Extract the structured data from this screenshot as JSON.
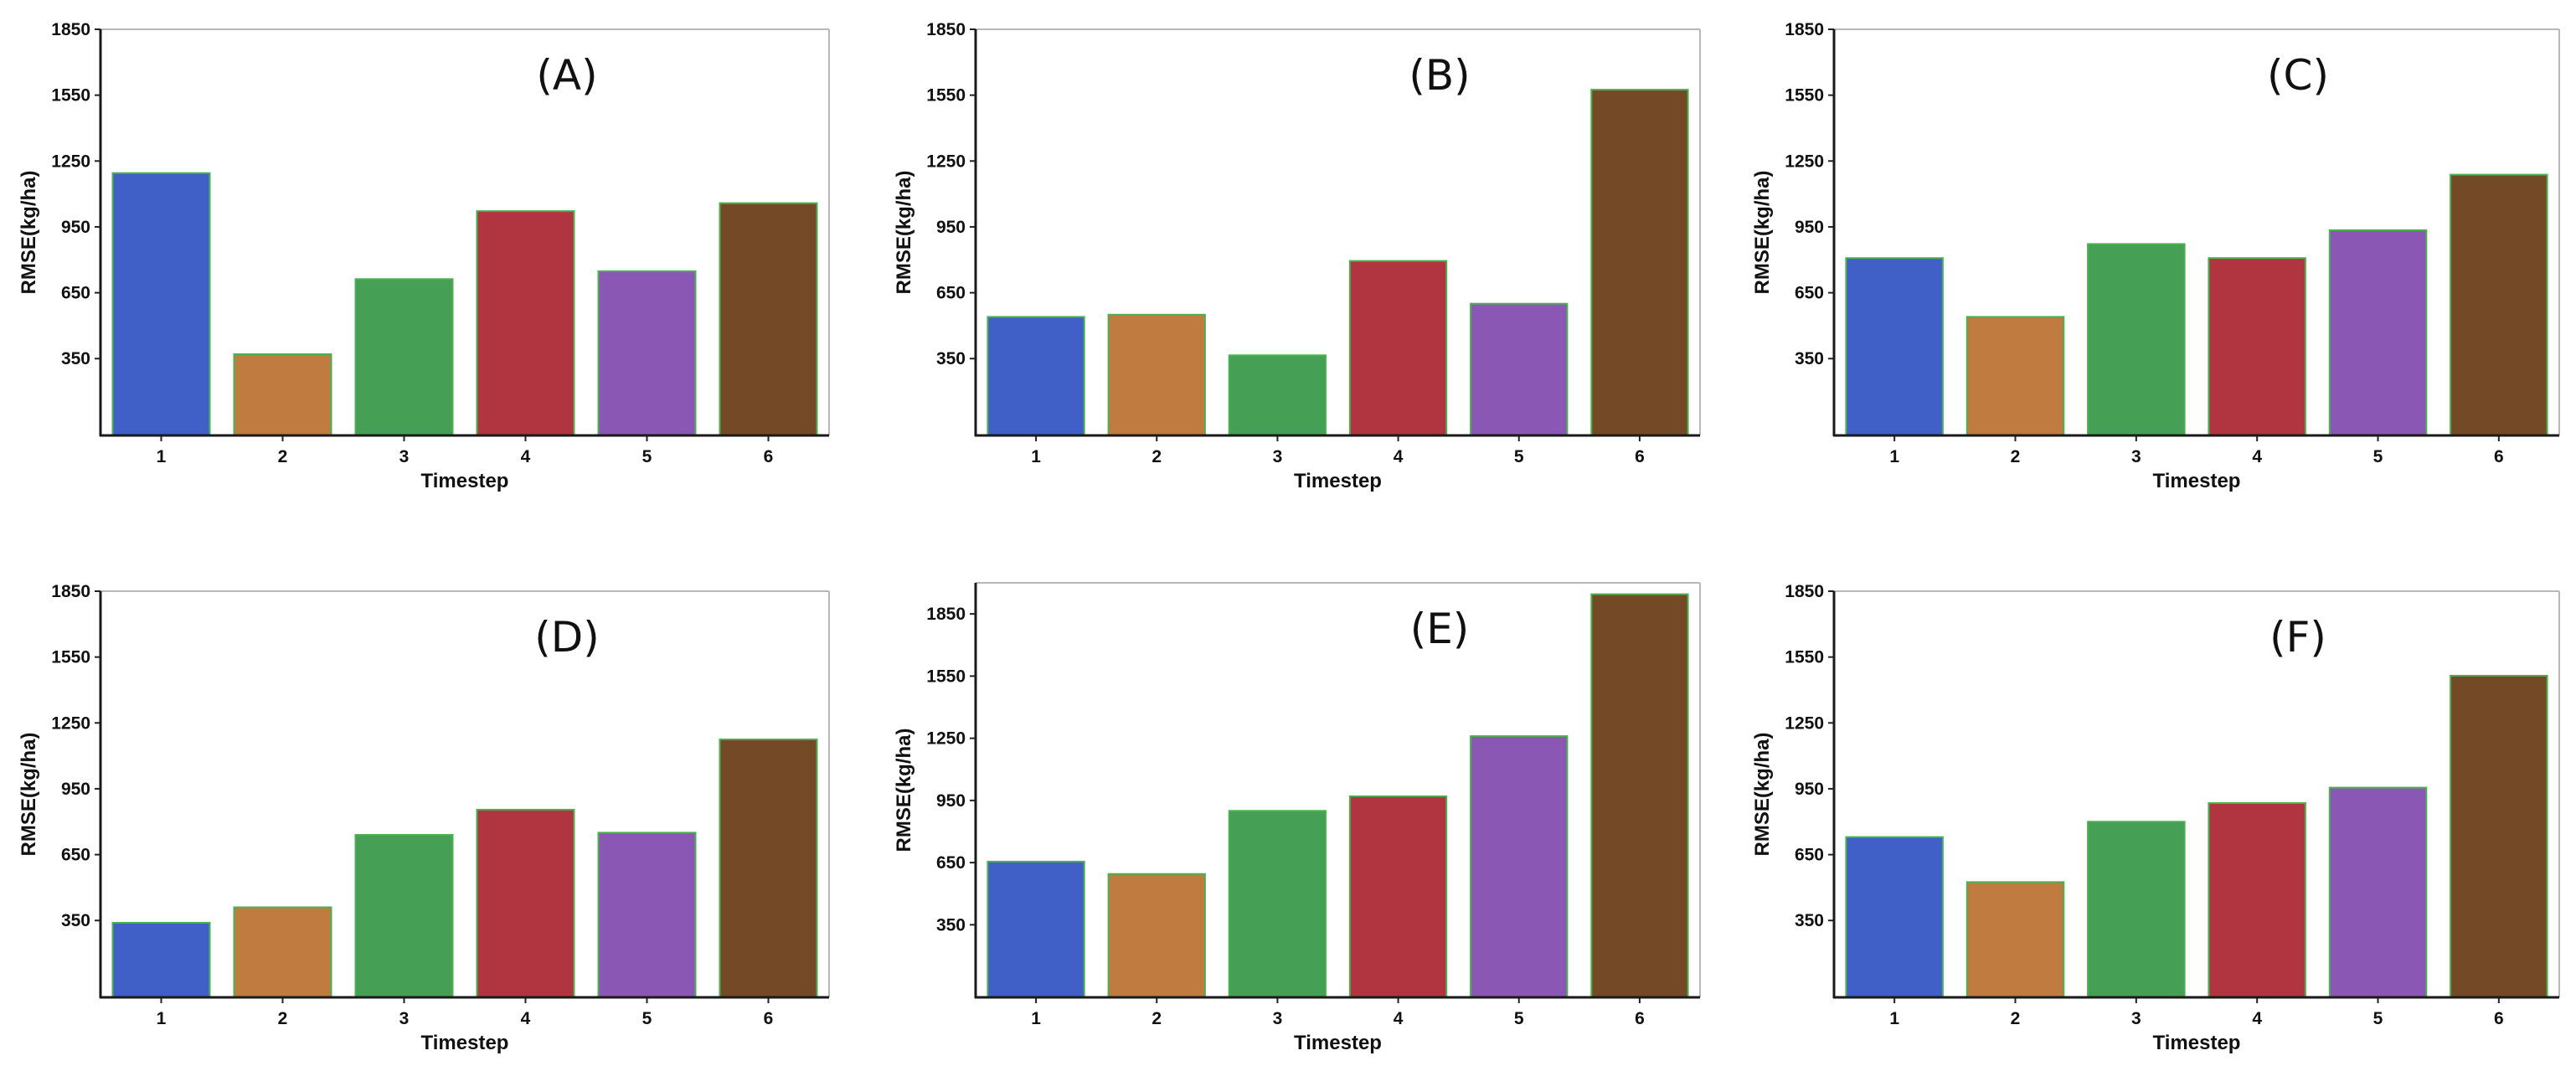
{
  "chart_data": [
    {
      "type": "bar",
      "panel_label": "(A)",
      "xlabel": "Timestep",
      "ylabel": "RMSE(kg/ha)",
      "categories": [
        "1",
        "2",
        "3",
        "4",
        "5",
        "6"
      ],
      "values": [
        1195,
        370,
        712,
        1022,
        748,
        1058
      ],
      "ylim": [
        0,
        1850
      ],
      "yticks": [
        350,
        650,
        950,
        1250,
        1550,
        1850
      ],
      "ytick_labels": [
        "350",
        "650",
        "950",
        "1250",
        "1550",
        "1850"
      ],
      "colors": [
        "#4060c8",
        "#c07c40",
        "#45a055",
        "#b03540",
        "#8a58b4",
        "#744a26"
      ],
      "bar_edge_color": "#4caf50"
    },
    {
      "type": "bar",
      "panel_label": "(B)",
      "xlabel": "Timestep",
      "ylabel": "RMSE(kg/ha)",
      "categories": [
        "1",
        "2",
        "3",
        "4",
        "5",
        "6"
      ],
      "values": [
        540,
        550,
        365,
        795,
        600,
        1575
      ],
      "ylim": [
        0,
        1850
      ],
      "yticks": [
        350,
        650,
        950,
        1250,
        1550,
        1850
      ],
      "ytick_labels": [
        "350",
        "650",
        "950",
        "1250",
        "1550",
        "1850"
      ],
      "colors": [
        "#4060c8",
        "#c07c40",
        "#45a055",
        "#b03540",
        "#8a58b4",
        "#744a26"
      ],
      "bar_edge_color": "#4caf50"
    },
    {
      "type": "bar",
      "panel_label": "(C)",
      "xlabel": "Timestep",
      "ylabel": "RMSE(kg/ha)",
      "categories": [
        "1",
        "2",
        "3",
        "4",
        "5",
        "6"
      ],
      "values": [
        808,
        540,
        872,
        808,
        935,
        1188
      ],
      "ylim": [
        0,
        1850
      ],
      "yticks": [
        350,
        650,
        950,
        1250,
        1550,
        1850
      ],
      "ytick_labels": [
        "350",
        "650",
        "950",
        "1250",
        "1550",
        "1850"
      ],
      "colors": [
        "#4060c8",
        "#c07c40",
        "#45a055",
        "#b03540",
        "#8a58b4",
        "#744a26"
      ],
      "bar_edge_color": "#4caf50"
    },
    {
      "type": "bar",
      "panel_label": "(D)",
      "xlabel": "Timestep",
      "ylabel": "RMSE(kg/ha)",
      "categories": [
        "1",
        "2",
        "3",
        "4",
        "5",
        "6"
      ],
      "values": [
        340,
        410,
        740,
        855,
        750,
        1175
      ],
      "ylim": [
        0,
        1850
      ],
      "yticks": [
        350,
        650,
        950,
        1250,
        1550,
        1850
      ],
      "ytick_labels": [
        "350",
        "650",
        "950",
        "1250",
        "1550",
        "1850"
      ],
      "colors": [
        "#4060c8",
        "#c07c40",
        "#45a055",
        "#b03540",
        "#8a58b4",
        "#744a26"
      ],
      "bar_edge_color": "#4caf50"
    },
    {
      "type": "bar",
      "panel_label": "(E)",
      "xlabel": "Timestep",
      "ylabel": "RMSE(kg/ha)",
      "categories": [
        "1",
        "2",
        "3",
        "4",
        "5",
        "6"
      ],
      "values": [
        655,
        595,
        900,
        970,
        1260,
        1945
      ],
      "ylim": [
        0,
        2000
      ],
      "yticks": [
        350,
        650,
        950,
        1250,
        1550,
        1850
      ],
      "ytick_labels": [
        "350",
        "650",
        "950",
        "1250",
        "1550",
        "1850"
      ],
      "colors": [
        "#4060c8",
        "#c07c40",
        "#45a055",
        "#b03540",
        "#8a58b4",
        "#744a26"
      ],
      "bar_edge_color": "#4caf50"
    },
    {
      "type": "bar",
      "panel_label": "(F)",
      "xlabel": "Timestep",
      "ylabel": "RMSE(kg/ha)",
      "categories": [
        "1",
        "2",
        "3",
        "4",
        "5",
        "6"
      ],
      "values": [
        730,
        525,
        800,
        885,
        955,
        1465
      ],
      "ylim": [
        0,
        1850
      ],
      "yticks": [
        350,
        650,
        950,
        1250,
        1550,
        1850
      ],
      "ytick_labels": [
        "350",
        "650",
        "950",
        "1250",
        "1550",
        "1850"
      ],
      "colors": [
        "#4060c8",
        "#c07c40",
        "#45a055",
        "#b03540",
        "#8a58b4",
        "#744a26"
      ],
      "bar_edge_color": "#4caf50"
    }
  ]
}
